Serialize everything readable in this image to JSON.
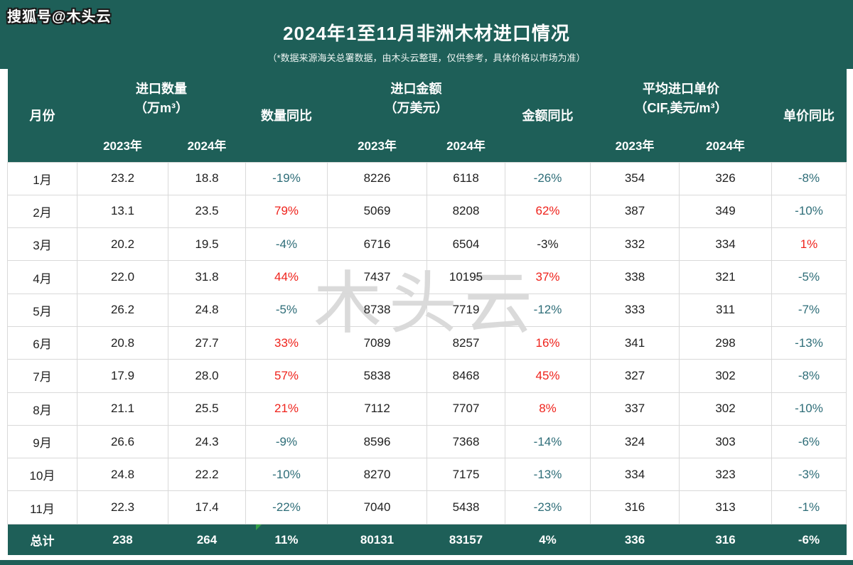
{
  "page": {
    "badge": "搜狐号@木头云",
    "title": "2024年1至11月非洲木材进口情况",
    "subtitle": "（*数据来源海关总署数据，由木头云整理，仅供参考，具体价格以市场为准）",
    "watermark": "木头云"
  },
  "colors": {
    "teal_header": "#1e5f58",
    "yoy_down": "#2e6d78",
    "yoy_up": "#ef231c",
    "cell_border": "#d9d9d9",
    "watermark_gray": "#dadada",
    "flag_green": "#34a045"
  },
  "table": {
    "col_names": [
      "month",
      "qty-2023",
      "qty-2024",
      "qty-yoy",
      "amount-2023",
      "amount-2024",
      "amount-yoy",
      "price-2023",
      "price-2024",
      "price-yoy"
    ],
    "headers": {
      "month": "月份",
      "qty_group_line1": "进口数量",
      "qty_group_line2": "（万m³）",
      "qty_yoy": "数量同比",
      "amount_group_line1": "进口金额",
      "amount_group_line2": "（万美元）",
      "amount_yoy": "金额同比",
      "price_group_line1": "平均进口单价",
      "price_group_line2": "（CIF,美元/m³）",
      "price_yoy": "单价同比",
      "year_2023": "2023年",
      "year_2024": "2024年"
    },
    "rows": [
      {
        "cells": [
          "1月",
          "23.2",
          "18.8",
          "-19%",
          "8226",
          "6118",
          "-26%",
          "354",
          "326",
          "-8%"
        ],
        "colors": [
          null,
          null,
          null,
          "down",
          null,
          null,
          "down",
          null,
          null,
          "down"
        ]
      },
      {
        "cells": [
          "2月",
          "13.1",
          "23.5",
          "79%",
          "5069",
          "8208",
          "62%",
          "387",
          "349",
          "-10%"
        ],
        "colors": [
          null,
          null,
          null,
          "up",
          null,
          null,
          "up",
          null,
          null,
          "down"
        ]
      },
      {
        "cells": [
          "3月",
          "20.2",
          "19.5",
          "-4%",
          "6716",
          "6504",
          "-3%",
          "332",
          "334",
          "1%"
        ],
        "colors": [
          null,
          null,
          null,
          "down",
          null,
          null,
          null,
          null,
          null,
          "up"
        ]
      },
      {
        "cells": [
          "4月",
          "22.0",
          "31.8",
          "44%",
          "7437",
          "10195",
          "37%",
          "338",
          "321",
          "-5%"
        ],
        "colors": [
          null,
          null,
          null,
          "up",
          null,
          null,
          "up",
          null,
          null,
          "down"
        ]
      },
      {
        "cells": [
          "5月",
          "26.2",
          "24.8",
          "-5%",
          "8738",
          "7719",
          "-12%",
          "333",
          "311",
          "-7%"
        ],
        "colors": [
          null,
          null,
          null,
          "down",
          null,
          null,
          "down",
          null,
          null,
          "down"
        ]
      },
      {
        "cells": [
          "6月",
          "20.8",
          "27.7",
          "33%",
          "7089",
          "8257",
          "16%",
          "341",
          "298",
          "-13%"
        ],
        "colors": [
          null,
          null,
          null,
          "up",
          null,
          null,
          "up",
          null,
          null,
          "down"
        ]
      },
      {
        "cells": [
          "7月",
          "17.9",
          "28.0",
          "57%",
          "5838",
          "8468",
          "45%",
          "327",
          "302",
          "-8%"
        ],
        "colors": [
          null,
          null,
          null,
          "up",
          null,
          null,
          "up",
          null,
          null,
          "down"
        ]
      },
      {
        "cells": [
          "8月",
          "21.1",
          "25.5",
          "21%",
          "7112",
          "7707",
          "8%",
          "337",
          "302",
          "-10%"
        ],
        "colors": [
          null,
          null,
          null,
          "up",
          null,
          null,
          "up",
          null,
          null,
          "down"
        ]
      },
      {
        "cells": [
          "9月",
          "26.6",
          "24.3",
          "-9%",
          "8596",
          "7368",
          "-14%",
          "324",
          "303",
          "-6%"
        ],
        "colors": [
          null,
          null,
          null,
          "down",
          null,
          null,
          "down",
          null,
          null,
          "down"
        ]
      },
      {
        "cells": [
          "10月",
          "24.8",
          "22.2",
          "-10%",
          "8270",
          "7175",
          "-13%",
          "334",
          "323",
          "-3%"
        ],
        "colors": [
          null,
          null,
          null,
          "down",
          null,
          null,
          "down",
          null,
          null,
          "down"
        ]
      },
      {
        "cells": [
          "11月",
          "22.3",
          "17.4",
          "-22%",
          "7040",
          "5438",
          "-23%",
          "316",
          "313",
          "-1%"
        ],
        "colors": [
          null,
          null,
          null,
          "down",
          null,
          null,
          "down",
          null,
          null,
          "down"
        ]
      }
    ],
    "total": {
      "cells": [
        "总计",
        "238",
        "264",
        "11%",
        "80131",
        "83157",
        "4%",
        "336",
        "316",
        "-6%"
      ]
    }
  },
  "chart_data": {
    "type": "table",
    "title": "2024年1至11月非洲木材进口情况",
    "subtitle": "（*数据来源海关总署数据，由木头云整理，仅供参考，具体价格以市场为准）",
    "column_groups": [
      "月份",
      "进口数量（万m³）",
      "数量同比",
      "进口金额（万美元）",
      "金额同比",
      "平均进口单价（CIF,美元/m³）",
      "单价同比"
    ],
    "columns": [
      "月份",
      "进口数量2023年",
      "进口数量2024年",
      "数量同比",
      "进口金额2023年",
      "进口金额2024年",
      "金额同比",
      "平均进口单价2023年",
      "平均进口单价2024年",
      "单价同比"
    ],
    "rows": [
      [
        "1月",
        23.2,
        18.8,
        "-19%",
        8226,
        6118,
        "-26%",
        354,
        326,
        "-8%"
      ],
      [
        "2月",
        13.1,
        23.5,
        "79%",
        5069,
        8208,
        "62%",
        387,
        349,
        "-10%"
      ],
      [
        "3月",
        20.2,
        19.5,
        "-4%",
        6716,
        6504,
        "-3%",
        332,
        334,
        "1%"
      ],
      [
        "4月",
        22.0,
        31.8,
        "44%",
        7437,
        10195,
        "37%",
        338,
        321,
        "-5%"
      ],
      [
        "5月",
        26.2,
        24.8,
        "-5%",
        8738,
        7719,
        "-12%",
        333,
        311,
        "-7%"
      ],
      [
        "6月",
        20.8,
        27.7,
        "33%",
        7089,
        8257,
        "16%",
        341,
        298,
        "-13%"
      ],
      [
        "7月",
        17.9,
        28.0,
        "57%",
        5838,
        8468,
        "45%",
        327,
        302,
        "-8%"
      ],
      [
        "8月",
        21.1,
        25.5,
        "21%",
        7112,
        7707,
        "8%",
        337,
        302,
        "-10%"
      ],
      [
        "9月",
        26.6,
        24.3,
        "-9%",
        8596,
        7368,
        "-14%",
        324,
        303,
        "-6%"
      ],
      [
        "10月",
        24.8,
        22.2,
        "-10%",
        8270,
        7175,
        "-13%",
        334,
        323,
        "-3%"
      ],
      [
        "11月",
        22.3,
        17.4,
        "-22%",
        7040,
        5438,
        "-23%",
        316,
        313,
        "-1%"
      ],
      [
        "总计",
        238,
        264,
        "11%",
        80131,
        83157,
        "4%",
        336,
        316,
        "-6%"
      ]
    ]
  }
}
